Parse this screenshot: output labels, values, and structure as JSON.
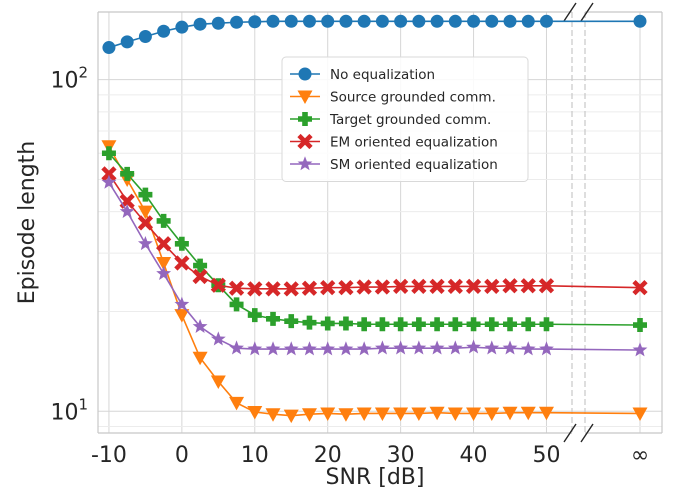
{
  "chart_data": {
    "type": "line",
    "xlabel": "SNR [dB]",
    "ylabel": "Episode length",
    "x_ticks": [
      -10,
      0,
      10,
      20,
      30,
      40,
      50
    ],
    "x_tick_labels": [
      "-10",
      "0",
      "10",
      "20",
      "30",
      "40",
      "50"
    ],
    "inf_tick_label": "∞",
    "xlim": [
      -11.5,
      53.5
    ],
    "y_scale": "log",
    "ylim": [
      8.6,
      160
    ],
    "y_ticks": [
      10,
      100
    ],
    "y_tick_labels": [
      {
        "base": "10",
        "exp": "1"
      },
      {
        "base": "10",
        "exp": "2"
      }
    ],
    "grid": true,
    "legend_position": "top-center",
    "x": [
      -10,
      -7.5,
      -5,
      -2.5,
      0,
      2.5,
      5,
      7.5,
      10,
      12.5,
      15,
      17.5,
      20,
      22.5,
      25,
      27.5,
      30,
      32.5,
      35,
      37.5,
      40,
      42.5,
      45,
      47.5,
      50
    ],
    "series": [
      {
        "name": "No equalization",
        "color": "#1f77b4",
        "marker": "circle",
        "values": [
          125,
          130,
          135,
          140,
          144,
          147,
          148,
          149,
          149.5,
          150,
          150,
          150,
          150,
          150,
          150,
          150,
          150,
          150,
          150,
          150,
          150,
          150,
          150,
          150,
          150
        ],
        "inf_value": 150
      },
      {
        "name": "Source grounded comm.",
        "color": "#ff7f0e",
        "marker": "triangle-down",
        "values": [
          63,
          50,
          40,
          28,
          19.5,
          14.5,
          12.3,
          10.6,
          9.95,
          9.8,
          9.7,
          9.8,
          9.85,
          9.8,
          9.85,
          9.85,
          9.85,
          9.85,
          9.9,
          9.85,
          9.85,
          9.85,
          9.9,
          9.9,
          9.9
        ],
        "inf_value": 9.85
      },
      {
        "name": "Target grounded comm.",
        "color": "#2ca02c",
        "marker": "plus",
        "values": [
          60,
          52,
          45,
          37.5,
          32,
          27.5,
          24,
          21,
          19.5,
          19,
          18.7,
          18.5,
          18.4,
          18.4,
          18.3,
          18.3,
          18.3,
          18.3,
          18.3,
          18.3,
          18.3,
          18.3,
          18.3,
          18.3,
          18.3
        ],
        "inf_value": 18.2
      },
      {
        "name": "EM oriented equalization",
        "color": "#d62728",
        "marker": "x",
        "values": [
          52,
          43,
          37,
          32,
          28,
          25.5,
          24,
          23.5,
          23.4,
          23.4,
          23.4,
          23.5,
          23.6,
          23.6,
          23.7,
          23.7,
          23.8,
          23.8,
          23.8,
          23.8,
          23.8,
          23.8,
          23.9,
          23.9,
          23.9
        ],
        "inf_value": 23.6
      },
      {
        "name": "SM oriented equalization",
        "color": "#9467bd",
        "marker": "star",
        "values": [
          49,
          40,
          32,
          26,
          21,
          18,
          16.5,
          15.5,
          15.4,
          15.4,
          15.4,
          15.4,
          15.4,
          15.4,
          15.4,
          15.5,
          15.5,
          15.5,
          15.5,
          15.5,
          15.6,
          15.5,
          15.5,
          15.4,
          15.4
        ],
        "inf_value": 15.3
      }
    ]
  }
}
